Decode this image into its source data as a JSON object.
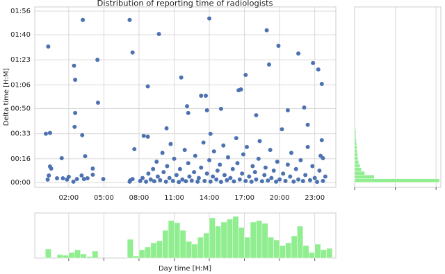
{
  "chart_data": [
    {
      "type": "scatter",
      "title": "Distribution of reporting time of radiologists",
      "y_label": "Delta time [H:M]",
      "color": "#4c72b0",
      "grid": true,
      "x": [
        3.2,
        0.25,
        0.05,
        0.4,
        1.4,
        0.5,
        2.45,
        2.55,
        2.55,
        2.5,
        3.15,
        3.4,
        4.45,
        4.5,
        4.05,
        7.2,
        7.45,
        7.6,
        9.7,
        8.75,
        8.4,
        8.75,
        11.6,
        10.35,
        12.1,
        12.2,
        13.3,
        13.7,
        14,
        13.8,
        14.1,
        15,
        16.5,
        16.7,
        17.1,
        18,
        18.9,
        19.1,
        19.9,
        20.7,
        21.6,
        22.1,
        22.85,
        23.3,
        23.6,
        22.4,
        23.6,
        23.7,
        0.2,
        0.3,
        0.4,
        1.0,
        1.5,
        1.85,
        2.0,
        2.4,
        2.7,
        3.1,
        3.3,
        3.6,
        4.05,
        4.95,
        7.25,
        7.45,
        7.2,
        8.1,
        8.3,
        8.6,
        8.8,
        9.0,
        9.2,
        9.3,
        9.5,
        9.6,
        9.8,
        10.0,
        10.1,
        10.3,
        10.4,
        10.6,
        10.7,
        10.9,
        11.0,
        11.2,
        11.4,
        11.5,
        11.7,
        11.9,
        12.0,
        12.2,
        12.3,
        12.5,
        12.7,
        12.8,
        13.0,
        13.1,
        13.3,
        13.5,
        13.6,
        13.8,
        14.0,
        14.1,
        14.3,
        14.4,
        14.6,
        14.7,
        14.9,
        15.0,
        15.2,
        15.3,
        15.5,
        15.6,
        15.8,
        16.0,
        16.1,
        16.3,
        16.4,
        16.6,
        16.8,
        16.9,
        17.1,
        17.2,
        17.4,
        17.6,
        17.7,
        17.9,
        18.0,
        18.2,
        18.3,
        18.5,
        18.7,
        18.8,
        19.0,
        19.2,
        19.3,
        19.5,
        19.7,
        19.8,
        20.0,
        20.2,
        20.3,
        20.5,
        20.7,
        20.9,
        21.0,
        21.2,
        21.4,
        21.6,
        21.8,
        22.0,
        22.2,
        22.4,
        22.6,
        22.8,
        23.0,
        23.2,
        23.4,
        23.5,
        23.7,
        23.9
      ],
      "values": [
        110,
        92,
        33,
        33.5,
        16.4,
        9.4,
        79,
        69.5,
        47,
        37.6,
        32,
        17.8,
        83,
        54,
        9.4,
        110,
        88,
        22.5,
        100.5,
        65,
        31.5,
        31,
        71,
        36.6,
        51.6,
        47,
        58.7,
        58.7,
        111,
        48.8,
        32.9,
        49.8,
        62.4,
        63,
        72.8,
        45.5,
        103,
        79.8,
        92.5,
        48.8,
        87.3,
        50.7,
        80.8,
        76.5,
        66.7,
        39,
        28.6,
        16.4,
        1.9,
        4.7,
        10.8,
        2.8,
        2.8,
        1.9,
        3.8,
        0.5,
        2.3,
        4.7,
        2.3,
        2.8,
        5.2,
        2.3,
        1.4,
        2.3,
        0.5,
        1,
        3,
        0.5,
        6,
        2,
        9,
        0.8,
        14,
        4,
        1.5,
        20,
        7,
        0.5,
        11,
        3,
        26,
        1,
        16,
        5,
        0.3,
        9,
        2,
        22,
        0.8,
        13,
        4,
        1.2,
        7,
        18,
        0.5,
        3,
        10,
        27,
        1,
        6,
        15,
        0.6,
        4,
        21,
        2,
        8,
        12,
        0.4,
        25,
        5,
        1.5,
        17,
        3,
        9,
        0.7,
        30,
        13,
        2,
        6,
        19,
        1,
        24,
        4,
        0.5,
        11,
        7,
        2,
        16,
        28,
        0.8,
        5,
        10,
        1.3,
        22,
        3,
        8,
        0.5,
        14,
        2,
        36,
        6,
        1,
        12,
        4,
        20,
        0.6,
        9,
        2,
        15,
        0.9,
        5,
        24,
        1.5,
        11,
        3,
        0.4,
        8,
        18,
        1,
        4
      ],
      "xlim": [
        -0.9,
        24.8
      ],
      "xticks": [
        {
          "value": 2,
          "label": "02:00"
        },
        {
          "value": 5,
          "label": "05:00"
        },
        {
          "value": 8,
          "label": "08:00"
        },
        {
          "value": 11,
          "label": "11:00"
        },
        {
          "value": 14,
          "label": "14:00"
        },
        {
          "value": 17,
          "label": "17:00"
        },
        {
          "value": 20,
          "label": "20:00"
        },
        {
          "value": 23,
          "label": "23:00"
        }
      ],
      "ylim": [
        -3.3,
        118.8
      ],
      "yticks": [
        {
          "value": 0,
          "label": "00:00"
        },
        {
          "value": 16,
          "label": "00:16"
        },
        {
          "value": 33,
          "label": "00:33"
        },
        {
          "value": 50,
          "label": "00:50"
        },
        {
          "value": 66,
          "label": "01:06"
        },
        {
          "value": 83,
          "label": "01:23"
        },
        {
          "value": 100,
          "label": "01:40"
        },
        {
          "value": 116,
          "label": "01:56"
        }
      ]
    },
    {
      "type": "histogram",
      "orientation": "horizontal",
      "color": "#90ee90",
      "grid": true,
      "bins": [
        0,
        2.5,
        5,
        7.5,
        10,
        12.5,
        15,
        17.5,
        20,
        22.5,
        25,
        27.5,
        30,
        32.5,
        35,
        37.5,
        40
      ],
      "values": [
        250,
        58,
        30,
        20,
        16,
        12,
        10,
        9,
        8,
        7,
        6,
        5,
        4,
        4,
        3,
        2
      ],
      "ylim": [
        -3.3,
        118.8
      ],
      "xlim": [
        0,
        254
      ],
      "xticks": [
        0,
        120,
        240
      ]
    },
    {
      "type": "histogram",
      "orientation": "vertical",
      "color": "#90ee90",
      "grid": true,
      "x_label": "Day time [H:M]",
      "bins": [
        0,
        0.5,
        1,
        1.5,
        2,
        2.5,
        3,
        3.5,
        4,
        4.5,
        5,
        5.5,
        6,
        6.5,
        7,
        7.5,
        8,
        8.5,
        9,
        9.5,
        10,
        10.5,
        11,
        11.5,
        12,
        12.5,
        13,
        13.5,
        14,
        14.5,
        15,
        15.5,
        16,
        16.5,
        17,
        17.5,
        18,
        18.5,
        19,
        19.5,
        20,
        20.5,
        21,
        21.5,
        22,
        22.5,
        23,
        23.5,
        24,
        24.5
      ],
      "values": [
        13,
        0,
        5,
        4,
        8,
        12,
        6,
        2,
        10,
        0,
        0,
        0,
        0,
        0,
        27,
        3,
        12,
        16,
        22,
        25,
        40,
        54,
        51,
        40,
        24,
        20,
        30,
        36,
        58,
        46,
        52,
        56,
        60,
        44,
        30,
        52,
        54,
        50,
        30,
        26,
        18,
        22,
        32,
        46,
        18,
        8,
        20,
        12,
        14
      ],
      "xlim": [
        -0.9,
        24.8
      ],
      "xticks": [
        2,
        5,
        8,
        11,
        14,
        17,
        20,
        23
      ],
      "ylim": [
        0,
        65
      ]
    }
  ]
}
